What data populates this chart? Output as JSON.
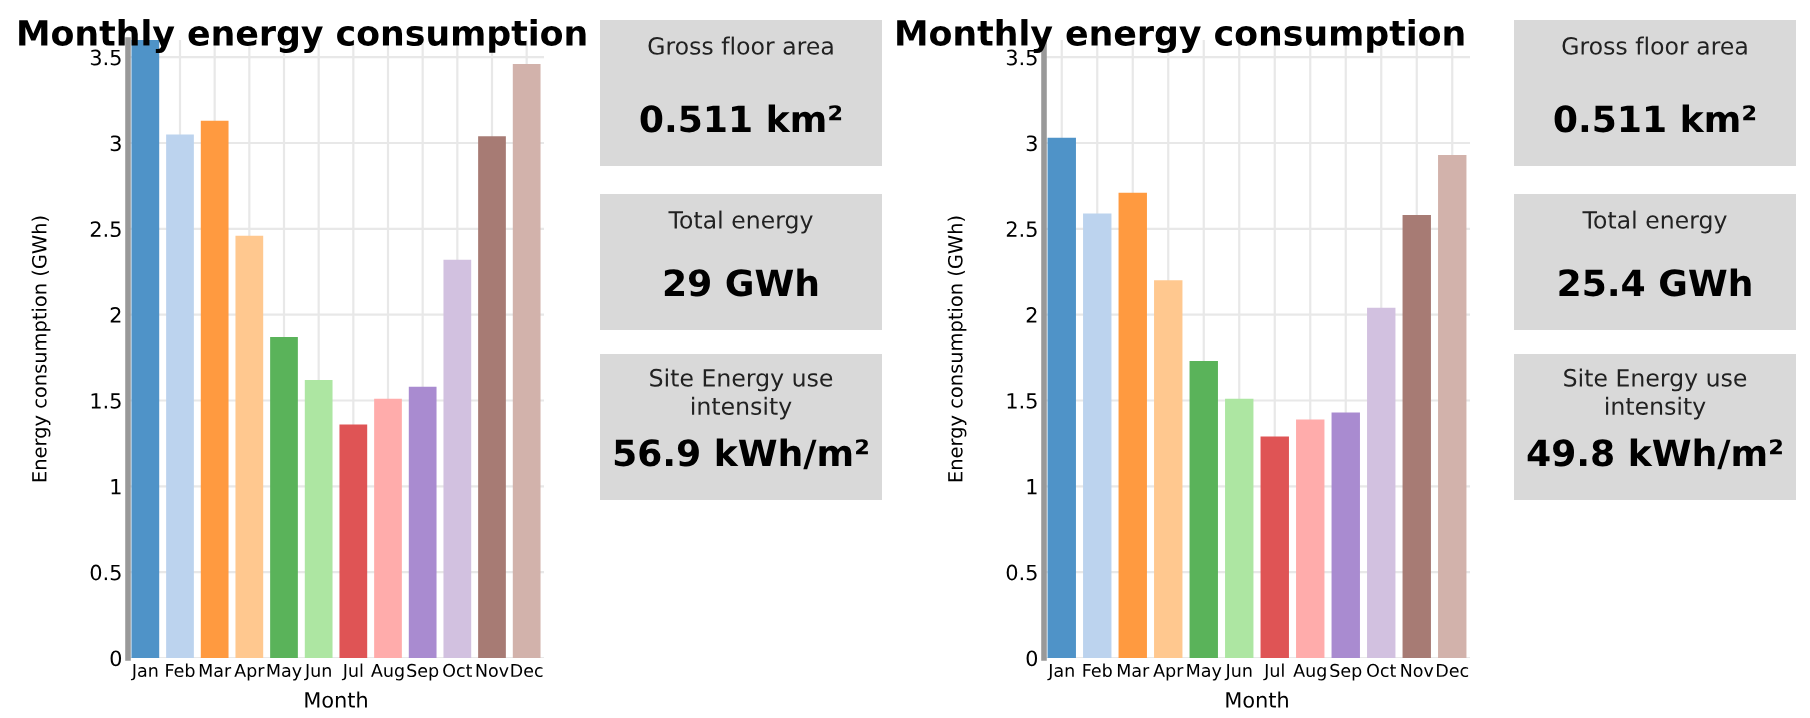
{
  "chart_data": [
    {
      "type": "bar",
      "title": "Monthly energy consumption",
      "xlabel": "Month",
      "ylabel": "Energy consumption (GWh)",
      "categories": [
        "Jan",
        "Feb",
        "Mar",
        "Apr",
        "May",
        "Jun",
        "Jul",
        "Aug",
        "Sep",
        "Oct",
        "Nov",
        "Dec"
      ],
      "values": [
        3.6,
        3.05,
        3.13,
        2.46,
        1.87,
        1.62,
        1.36,
        1.51,
        1.58,
        2.32,
        3.04,
        3.46
      ],
      "colors": [
        "#4f93c8",
        "#bcd3ee",
        "#ff9a40",
        "#ffc88f",
        "#5ab35a",
        "#ade6a2",
        "#df5455",
        "#ffacab",
        "#a98bd0",
        "#d2c1e0",
        "#a77b74",
        "#d2b2ab"
      ],
      "ylim": [
        0,
        3.6
      ],
      "yticks": [
        0,
        0.5,
        1,
        1.5,
        2,
        2.5,
        3,
        3.5
      ],
      "grid": true
    },
    {
      "type": "other",
      "annotations": [
        "Gross floor area",
        "0.511 km²",
        "Total energy",
        "29 GWh",
        "Site Energy use\nintensity",
        "56.9 kWh/m²"
      ]
    },
    {
      "type": "bar",
      "title": "Monthly energy consumption",
      "xlabel": "Month",
      "ylabel": "Energy consumption (GWh)",
      "categories": [
        "Jan",
        "Feb",
        "Mar",
        "Apr",
        "May",
        "Jun",
        "Jul",
        "Aug",
        "Sep",
        "Oct",
        "Nov",
        "Dec"
      ],
      "values": [
        3.03,
        2.59,
        2.71,
        2.2,
        1.73,
        1.51,
        1.29,
        1.39,
        1.43,
        2.04,
        2.58,
        2.93
      ],
      "colors": [
        "#4f93c8",
        "#bcd3ee",
        "#ff9a40",
        "#ffc88f",
        "#5ab35a",
        "#ade6a2",
        "#df5455",
        "#ffacab",
        "#a98bd0",
        "#d2c1e0",
        "#a77b74",
        "#d2b2ab"
      ],
      "ylim": [
        0,
        3.6
      ],
      "yticks": [
        0,
        0.5,
        1,
        1.5,
        2,
        2.5,
        3,
        3.5
      ],
      "grid": true
    },
    {
      "type": "other",
      "annotations": [
        "Gross floor area",
        "0.511 km²",
        "Total energy",
        "25.4 GWh",
        "Site Energy use\nintensity",
        "49.8 kWh/m²"
      ]
    }
  ]
}
